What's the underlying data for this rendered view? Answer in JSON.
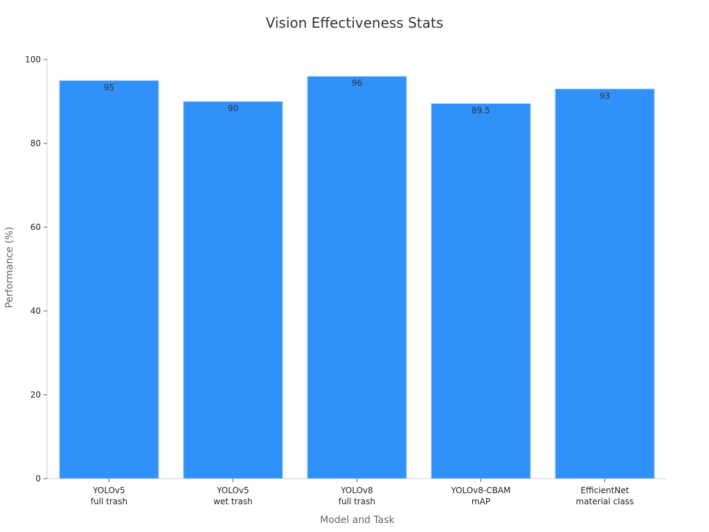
{
  "chart_data": {
    "type": "bar",
    "title": "Vision Effectiveness Stats",
    "xlabel": "Model and Task",
    "ylabel": "Performance (%)",
    "categories": [
      [
        "YOLOv5",
        "full trash"
      ],
      [
        "YOLOv5",
        "wet trash"
      ],
      [
        "YOLOv8",
        "full trash"
      ],
      [
        "YOLOv8-CBAM",
        "mAP"
      ],
      [
        "EfficientNet",
        "material class"
      ]
    ],
    "values": [
      95,
      90,
      96,
      89.5,
      93
    ],
    "value_labels": [
      "95",
      "90",
      "96",
      "89.5",
      "93"
    ],
    "ylim": [
      0,
      100
    ],
    "yticks": [
      0,
      20,
      40,
      60,
      80,
      100
    ],
    "grid": false,
    "legend": "none",
    "bar_color": "#2f91f9",
    "bar_edge_color": "#a8cdf8",
    "axis_color": "#cccccc"
  }
}
